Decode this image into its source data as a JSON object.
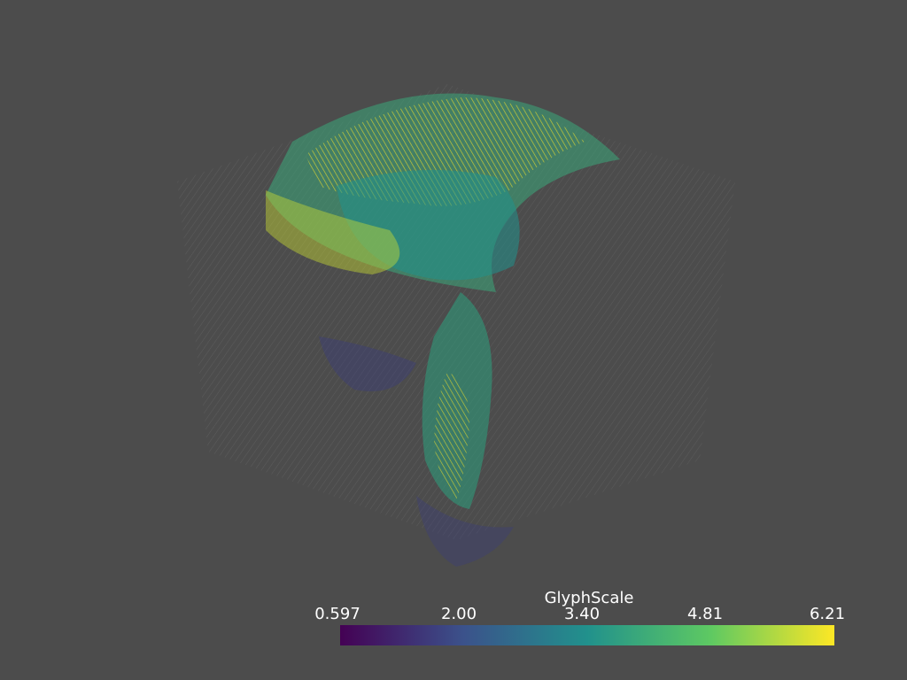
{
  "scene": {
    "background": "#4c4c4c",
    "object": "vector glyph field in a cube",
    "colormap": "viridis"
  },
  "scalar_bar": {
    "title": "GlyphScale",
    "ticks": [
      "0.597",
      "2.00",
      "3.40",
      "4.81",
      "6.21"
    ],
    "range": [
      0.597,
      6.21
    ],
    "colors": [
      "#440154",
      "#3b528b",
      "#21918c",
      "#5ec962",
      "#fde725"
    ]
  }
}
